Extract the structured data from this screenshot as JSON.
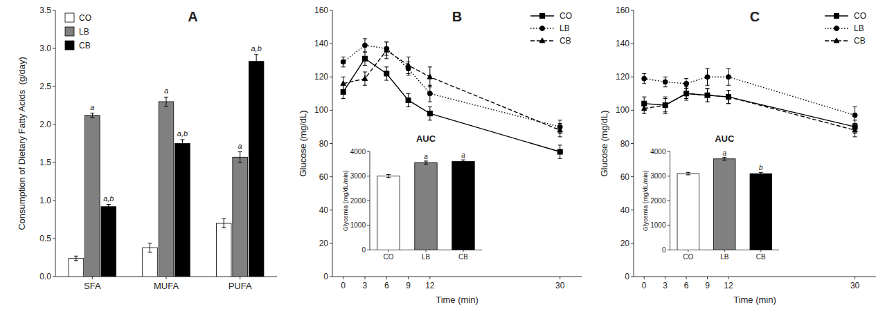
{
  "chart_data": [
    {
      "type": "bar",
      "title": "A",
      "ylabel": "Consumption of Dietary Fatty Acids  (g/day)",
      "categories": [
        "SFA",
        "MUFA",
        "PUFA"
      ],
      "series": [
        {
          "name": "CO",
          "color": "white",
          "values": [
            0.24,
            0.38,
            0.7
          ],
          "errors": [
            0.03,
            0.06,
            0.06
          ]
        },
        {
          "name": "LB",
          "color": "#808080",
          "values": [
            2.12,
            2.3,
            1.57
          ],
          "errors": [
            0.03,
            0.06,
            0.07
          ],
          "annotations": [
            "a",
            "a",
            "a"
          ]
        },
        {
          "name": "CB",
          "color": "black",
          "values": [
            0.92,
            1.75,
            2.83
          ],
          "errors": [
            0.03,
            0.05,
            0.09
          ],
          "annotations": [
            "a,b",
            "a,b",
            "a,b"
          ]
        }
      ],
      "ylim": [
        0,
        3.5
      ],
      "yticks": [
        {
          "value": 0,
          "label": "0.0"
        },
        0.5,
        {
          "value": 1,
          "label": "1.0"
        },
        1.5,
        {
          "value": 2,
          "label": "2.0"
        },
        2.5,
        {
          "value": 3,
          "label": "3.0"
        },
        3.5
      ],
      "legend": "upper left",
      "grid": false
    },
    {
      "type": "line",
      "title": "B",
      "xlabel": "Time (min)",
      "ylabel": "Glucose (mg/dL)",
      "x": [
        0,
        3,
        6,
        9,
        12,
        30
      ],
      "series": [
        {
          "name": "CO",
          "color": "black",
          "marker": "square",
          "line_style": "solid",
          "values": [
            111,
            131,
            122,
            106,
            98,
            75
          ],
          "errors": [
            4,
            4,
            4,
            4,
            4,
            4
          ]
        },
        {
          "name": "LB",
          "color": "black",
          "marker": "circle",
          "line_style": "dotted",
          "values": [
            129,
            139,
            137,
            125,
            110,
            90
          ],
          "errors": [
            3,
            4,
            4,
            4,
            5,
            4
          ]
        },
        {
          "name": "CB",
          "color": "black",
          "marker": "triangle",
          "line_style": "dashed",
          "values": [
            116,
            119,
            136,
            127,
            120,
            88
          ],
          "errors": [
            4,
            4,
            5,
            5,
            6,
            4
          ]
        }
      ],
      "xlim": [
        -1.5,
        33
      ],
      "xticks": [
        0,
        3,
        6,
        9,
        12,
        30
      ],
      "ylim": [
        0,
        160
      ],
      "yticks": [
        0,
        20,
        40,
        60,
        80,
        100,
        120,
        140,
        160
      ],
      "legend": "upper right",
      "grid": false
    },
    {
      "type": "bar",
      "title": "AUC",
      "ylabel": "Glycemia (mg/dL/min)",
      "categories": [
        "CO",
        "LB",
        "CB"
      ],
      "values": [
        3000,
        3550,
        3600
      ],
      "errors": [
        60,
        60,
        60
      ],
      "colors": [
        "white",
        "#808080",
        "black"
      ],
      "annotations": [
        null,
        "a",
        "a"
      ],
      "ylim": [
        0,
        4000
      ],
      "yticks": [
        0,
        1000,
        2000,
        3000,
        4000
      ],
      "grid": false
    },
    {
      "type": "line",
      "title": "C",
      "xlabel": "Time (min)",
      "ylabel": "Glucose (mg/dL)",
      "x": [
        0,
        3,
        6,
        9,
        12,
        30
      ],
      "series": [
        {
          "name": "CO",
          "color": "black",
          "marker": "square",
          "line_style": "solid",
          "values": [
            104,
            103,
            110,
            109,
            108,
            90
          ],
          "errors": [
            4,
            5,
            4,
            4,
            4,
            4
          ]
        },
        {
          "name": "LB",
          "color": "black",
          "marker": "circle",
          "line_style": "dotted",
          "values": [
            119,
            117,
            116,
            120,
            120,
            97
          ],
          "errors": [
            3,
            3,
            3,
            5,
            5,
            5
          ]
        },
        {
          "name": "CB",
          "color": "black",
          "marker": "triangle",
          "line_style": "dashed",
          "values": [
            101,
            103,
            110,
            109,
            108,
            88
          ],
          "errors": [
            3,
            4,
            3,
            4,
            4,
            4
          ]
        }
      ],
      "xlim": [
        -1.5,
        33
      ],
      "xticks": [
        0,
        3,
        6,
        9,
        12,
        30
      ],
      "ylim": [
        0,
        160
      ],
      "yticks": [
        0,
        20,
        40,
        60,
        80,
        100,
        120,
        140,
        160
      ],
      "legend": "upper right",
      "grid": false
    },
    {
      "type": "bar",
      "title": "AUC",
      "ylabel": "Glycemia (mg/dL/min)",
      "categories": [
        "CO",
        "LB",
        "CB"
      ],
      "values": [
        3100,
        3700,
        3100
      ],
      "errors": [
        50,
        60,
        50
      ],
      "colors": [
        "white",
        "#808080",
        "black"
      ],
      "annotations": [
        null,
        "a",
        "b"
      ],
      "ylim": [
        0,
        4000
      ],
      "yticks": [
        0,
        1000,
        2000,
        3000,
        4000
      ],
      "grid": false
    }
  ]
}
